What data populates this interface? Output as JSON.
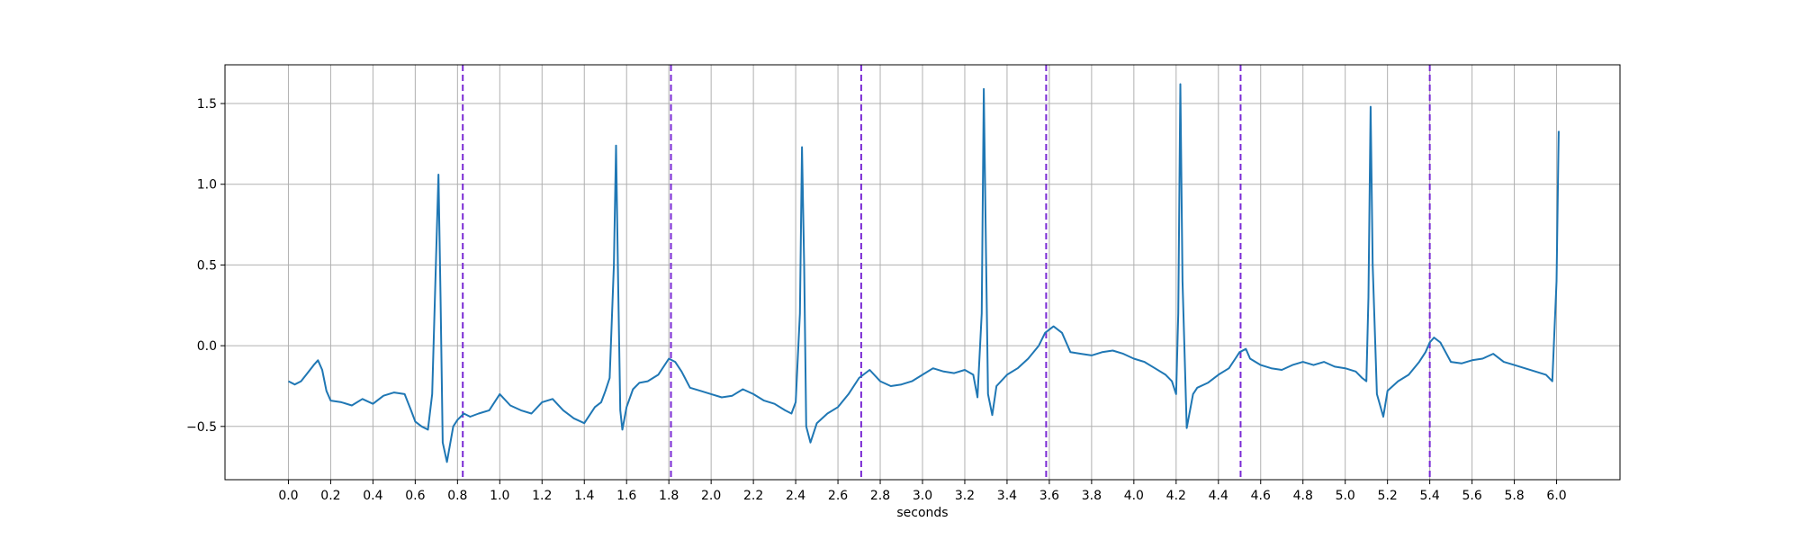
{
  "chart_data": {
    "type": "line",
    "title": "",
    "xlabel": "seconds",
    "ylabel": "",
    "xlim": [
      -0.3,
      6.3
    ],
    "ylim": [
      -0.83,
      1.74
    ],
    "grid": true,
    "legend": "none",
    "x_ticks": [
      0.0,
      0.2,
      0.4,
      0.6,
      0.8,
      1.0,
      1.2,
      1.4,
      1.6,
      1.8,
      2.0,
      2.2,
      2.4,
      2.6,
      2.8,
      3.0,
      3.2,
      3.4,
      3.6,
      3.8,
      4.0,
      4.2,
      4.4,
      4.6,
      4.8,
      5.0,
      5.2,
      5.4,
      5.6,
      5.8,
      6.0
    ],
    "x_tick_labels": [
      "0.0",
      "0.2",
      "0.4",
      "0.6",
      "0.8",
      "1.0",
      "1.2",
      "1.4",
      "1.6",
      "1.8",
      "2.0",
      "2.2",
      "2.4",
      "2.6",
      "2.8",
      "3.0",
      "3.2",
      "3.4",
      "3.6",
      "3.8",
      "4.0",
      "4.2",
      "4.4",
      "4.6",
      "4.8",
      "5.0",
      "5.2",
      "5.4",
      "5.6",
      "5.8",
      "6.0"
    ],
    "y_ticks": [
      -0.5,
      0.0,
      0.5,
      1.0,
      1.5
    ],
    "y_tick_labels": [
      "−0.5",
      "0.0",
      "0.5",
      "1.0",
      "1.5"
    ],
    "series": [
      {
        "color": "#1f77b4",
        "x": [
          0.0,
          0.03,
          0.06,
          0.09,
          0.12,
          0.14,
          0.16,
          0.18,
          0.2,
          0.25,
          0.3,
          0.35,
          0.4,
          0.45,
          0.5,
          0.55,
          0.58,
          0.6,
          0.63,
          0.66,
          0.68,
          0.7,
          0.71,
          0.72,
          0.73,
          0.75,
          0.78,
          0.8,
          0.83,
          0.86,
          0.9,
          0.95,
          1.0,
          1.05,
          1.1,
          1.15,
          1.2,
          1.25,
          1.3,
          1.35,
          1.4,
          1.45,
          1.48,
          1.5,
          1.52,
          1.54,
          1.55,
          1.56,
          1.57,
          1.58,
          1.6,
          1.63,
          1.66,
          1.7,
          1.75,
          1.8,
          1.83,
          1.86,
          1.9,
          1.95,
          2.0,
          2.05,
          2.1,
          2.15,
          2.2,
          2.25,
          2.3,
          2.35,
          2.38,
          2.4,
          2.42,
          2.43,
          2.44,
          2.45,
          2.47,
          2.5,
          2.55,
          2.6,
          2.65,
          2.7,
          2.75,
          2.8,
          2.85,
          2.9,
          2.95,
          3.0,
          3.05,
          3.1,
          3.15,
          3.2,
          3.24,
          3.26,
          3.28,
          3.29,
          3.3,
          3.31,
          3.33,
          3.35,
          3.4,
          3.45,
          3.5,
          3.55,
          3.58,
          3.62,
          3.66,
          3.7,
          3.75,
          3.8,
          3.85,
          3.9,
          3.95,
          4.0,
          4.05,
          4.1,
          4.15,
          4.18,
          4.2,
          4.21,
          4.22,
          4.23,
          4.25,
          4.28,
          4.3,
          4.35,
          4.4,
          4.45,
          4.48,
          4.5,
          4.53,
          4.55,
          4.6,
          4.65,
          4.7,
          4.75,
          4.8,
          4.85,
          4.9,
          4.95,
          5.0,
          5.05,
          5.08,
          5.1,
          5.11,
          5.12,
          5.13,
          5.15,
          5.18,
          5.2,
          5.25,
          5.3,
          5.35,
          5.38,
          5.4,
          5.42,
          5.45,
          5.5,
          5.55,
          5.6,
          5.65,
          5.7,
          5.75,
          5.8,
          5.85,
          5.9,
          5.95,
          5.98,
          6.0,
          6.01
        ],
        "y": [
          -0.22,
          -0.24,
          -0.22,
          -0.17,
          -0.12,
          -0.09,
          -0.15,
          -0.28,
          -0.34,
          -0.35,
          -0.37,
          -0.33,
          -0.36,
          -0.31,
          -0.29,
          -0.3,
          -0.4,
          -0.47,
          -0.5,
          -0.52,
          -0.3,
          0.6,
          1.06,
          0.3,
          -0.6,
          -0.72,
          -0.5,
          -0.46,
          -0.42,
          -0.44,
          -0.42,
          -0.4,
          -0.3,
          -0.37,
          -0.4,
          -0.42,
          -0.35,
          -0.33,
          -0.4,
          -0.45,
          -0.48,
          -0.38,
          -0.35,
          -0.28,
          -0.2,
          0.5,
          1.24,
          0.4,
          -0.4,
          -0.52,
          -0.38,
          -0.27,
          -0.23,
          -0.22,
          -0.18,
          -0.08,
          -0.1,
          -0.16,
          -0.26,
          -0.28,
          -0.3,
          -0.32,
          -0.31,
          -0.27,
          -0.3,
          -0.34,
          -0.36,
          -0.4,
          -0.42,
          -0.35,
          0.2,
          1.23,
          0.5,
          -0.5,
          -0.6,
          -0.48,
          -0.42,
          -0.38,
          -0.3,
          -0.2,
          -0.15,
          -0.22,
          -0.25,
          -0.24,
          -0.22,
          -0.18,
          -0.14,
          -0.16,
          -0.17,
          -0.15,
          -0.18,
          -0.32,
          0.2,
          1.59,
          0.6,
          -0.3,
          -0.43,
          -0.25,
          -0.18,
          -0.14,
          -0.08,
          0.0,
          0.08,
          0.12,
          0.08,
          -0.04,
          -0.05,
          -0.06,
          -0.04,
          -0.03,
          -0.05,
          -0.08,
          -0.1,
          -0.14,
          -0.18,
          -0.22,
          -0.3,
          0.2,
          1.62,
          0.4,
          -0.51,
          -0.3,
          -0.26,
          -0.23,
          -0.18,
          -0.14,
          -0.08,
          -0.04,
          -0.02,
          -0.08,
          -0.12,
          -0.14,
          -0.15,
          -0.12,
          -0.1,
          -0.12,
          -0.1,
          -0.13,
          -0.14,
          -0.16,
          -0.2,
          -0.22,
          0.3,
          1.48,
          0.5,
          -0.3,
          -0.44,
          -0.28,
          -0.22,
          -0.18,
          -0.1,
          -0.04,
          0.02,
          0.05,
          0.02,
          -0.1,
          -0.11,
          -0.09,
          -0.08,
          -0.05,
          -0.1,
          -0.12,
          -0.14,
          -0.16,
          -0.18,
          -0.22,
          0.4,
          1.33
        ]
      }
    ],
    "vlines": {
      "x": [
        0.825,
        1.81,
        2.71,
        3.585,
        4.505,
        5.4
      ],
      "color": "#7a2ad4",
      "style": "dashed"
    }
  }
}
